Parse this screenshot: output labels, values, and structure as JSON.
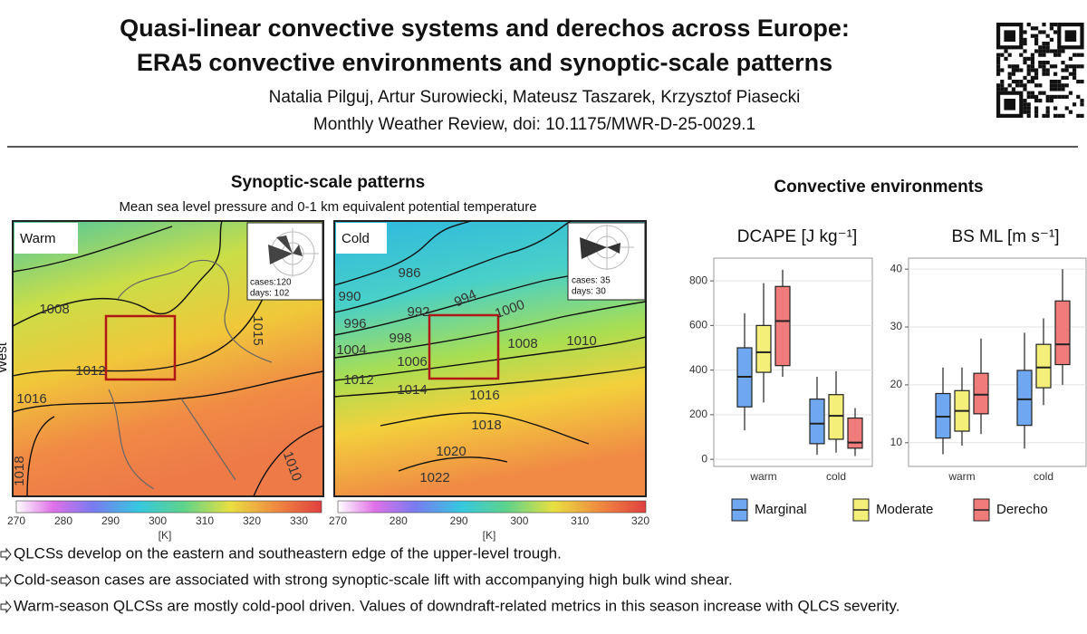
{
  "header": {
    "title": [
      "Quasi-linear convective systems and derechos across Europe:",
      "ERA5 convective environments and synoptic-scale patterns"
    ],
    "authors": "Natalia Pilguj, Artur Surowiecki, Mateusz Taszarek, Krzysztof Piasecki",
    "journal": "Monthly Weather Review, doi: 10.1175/MWR-D-25-0029.1"
  },
  "synoptic": {
    "title": "Synoptic-scale patterns",
    "subtitle": "Mean sea level pressure and 0-1 km equivalent potential temperature",
    "y_label": "West",
    "maps": [
      {
        "label": "Warm",
        "cases": "cases:120",
        "days": "days: 102",
        "isobars": [
          "1008",
          "1012",
          "1016",
          "1018",
          "1010",
          "1015"
        ],
        "colorbar_ticks": [
          270,
          280,
          290,
          300,
          310,
          320,
          330
        ],
        "colorbar_unit": "[K]"
      },
      {
        "label": "Cold",
        "cases": "cases: 35",
        "days": "days: 30",
        "isobars": [
          "986",
          "990",
          "992",
          "994",
          "996",
          "998",
          "1000",
          "1004",
          "1006",
          "1008",
          "1010",
          "1012",
          "1014",
          "1016",
          "1018",
          "1020",
          "1022"
        ],
        "colorbar_ticks": [
          270,
          280,
          290,
          300,
          310,
          320
        ],
        "colorbar_unit": "[K]"
      }
    ]
  },
  "convective": {
    "title": "Convective environments"
  },
  "chart_data": [
    {
      "type": "box",
      "title": "DCAPE [J kg⁻¹]",
      "categories": [
        "warm",
        "cold"
      ],
      "ylim": [
        -32,
        902
      ],
      "yticks": [
        0,
        200,
        400,
        600,
        800
      ],
      "grid": true,
      "series": [
        {
          "name": "Marginal",
          "color": "#6fa8f0",
          "min": [
            130,
            20
          ],
          "q1": [
            235,
            70
          ],
          "median": [
            370,
            160
          ],
          "q3": [
            500,
            270
          ],
          "max": [
            655,
            370
          ]
        },
        {
          "name": "Moderate",
          "color": "#f3ef78",
          "min": [
            255,
            30
          ],
          "q1": [
            390,
            90
          ],
          "median": [
            480,
            195
          ],
          "q3": [
            600,
            290
          ],
          "max": [
            790,
            395
          ]
        },
        {
          "name": "Derecho",
          "color": "#f07b7b",
          "min": [
            370,
            15
          ],
          "q1": [
            420,
            50
          ],
          "median": [
            620,
            75
          ],
          "q3": [
            775,
            185
          ],
          "max": [
            850,
            230
          ]
        }
      ]
    },
    {
      "type": "box",
      "title": "BS ML [m s⁻¹]",
      "categories": [
        "warm",
        "cold"
      ],
      "ylim": [
        5.9,
        41.9
      ],
      "yticks": [
        10,
        20,
        30,
        40
      ],
      "grid": true,
      "series": [
        {
          "name": "Marginal",
          "color": "#6fa8f0",
          "min": [
            8,
            9
          ],
          "q1": [
            10.8,
            13
          ],
          "median": [
            14.5,
            17.5
          ],
          "q3": [
            18.5,
            22.5
          ],
          "max": [
            23,
            29
          ]
        },
        {
          "name": "Moderate",
          "color": "#f3ef78",
          "min": [
            9.5,
            16.5
          ],
          "q1": [
            12,
            19.5
          ],
          "median": [
            15.5,
            23
          ],
          "q3": [
            19,
            27
          ],
          "max": [
            23,
            31.5
          ]
        },
        {
          "name": "Derecho",
          "color": "#f07b7b",
          "min": [
            11.5,
            20
          ],
          "q1": [
            15,
            23.5
          ],
          "median": [
            18.3,
            27
          ],
          "q3": [
            22,
            34.5
          ],
          "max": [
            28,
            40
          ]
        }
      ]
    }
  ],
  "findings": [
    "QLCSs develop on the eastern and southeastern edge of the upper-level trough.",
    "Cold-season cases are associated with strong synoptic-scale lift with accompanying high bulk wind shear.",
    "Warm-season QLCSs are mostly cold-pool driven. Values of downdraft-related metrics in this season increase with QLCS severity."
  ]
}
